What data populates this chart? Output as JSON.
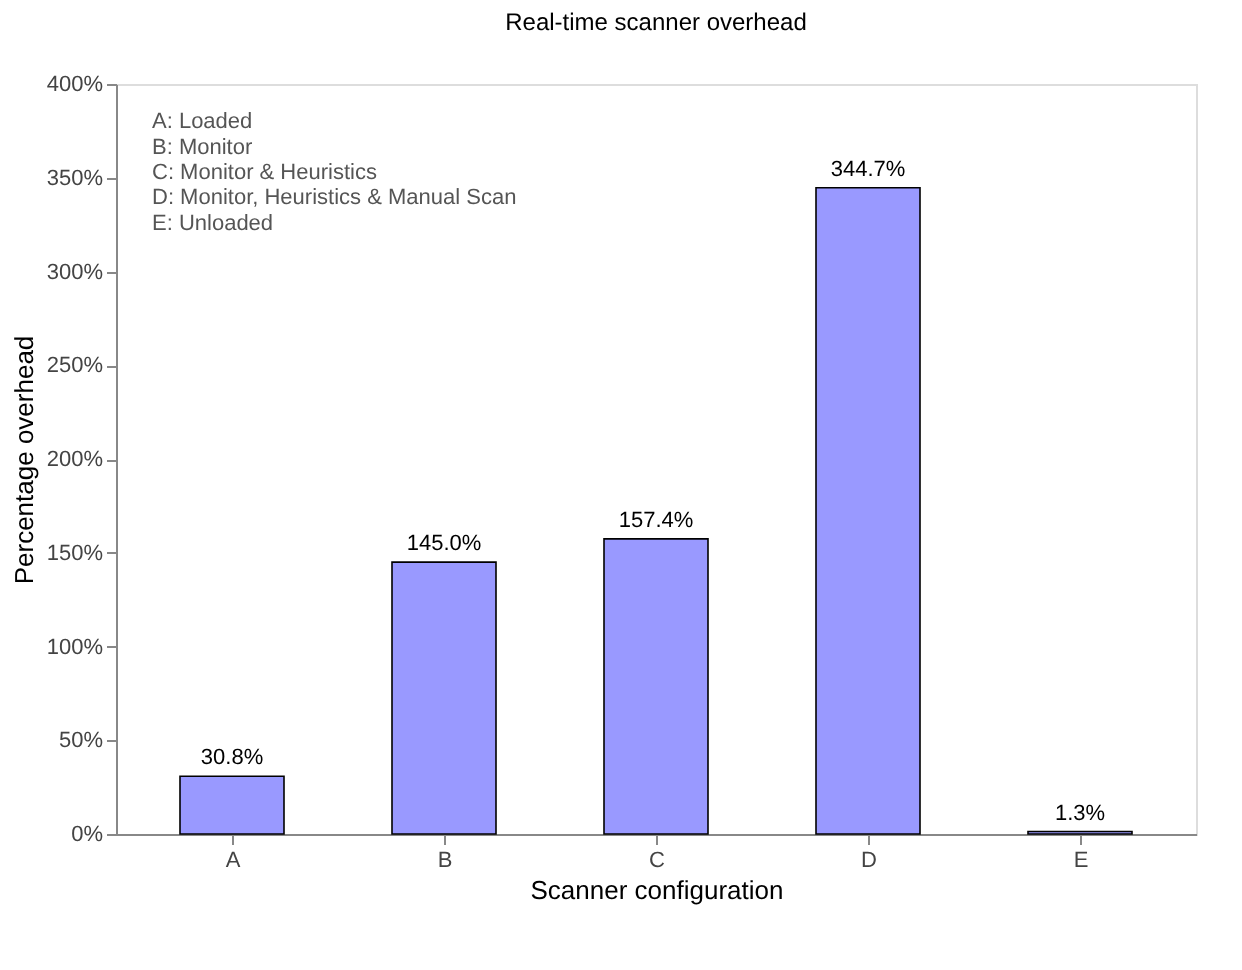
{
  "chart_data": {
    "type": "bar",
    "title": "Real-time scanner overhead",
    "xlabel": "Scanner configuration",
    "ylabel": "Percentage overhead",
    "categories": [
      "A",
      "B",
      "C",
      "D",
      "E"
    ],
    "values": [
      30.8,
      145.0,
      157.4,
      344.7,
      1.3
    ],
    "value_labels": [
      "30.8%",
      "145.0%",
      "157.4%",
      "344.7%",
      "1.3%"
    ],
    "color": "#9999ff",
    "ylim": [
      0,
      400
    ],
    "yticks": [
      {
        "value": 0,
        "label": "0%"
      },
      {
        "value": 50,
        "label": "50%"
      },
      {
        "value": 100,
        "label": "100%"
      },
      {
        "value": 150,
        "label": "150%"
      },
      {
        "value": 200,
        "label": "200%"
      },
      {
        "value": 250,
        "label": "250%"
      },
      {
        "value": 300,
        "label": "300%"
      },
      {
        "value": 350,
        "label": "350%"
      },
      {
        "value": 400,
        "label": "400%"
      }
    ],
    "annotations": [
      "A:  Loaded",
      "B:  Monitor",
      "C:  Monitor & Heuristics",
      "D:  Monitor, Heuristics & Manual Scan",
      "E: Unloaded"
    ],
    "grid": false
  }
}
